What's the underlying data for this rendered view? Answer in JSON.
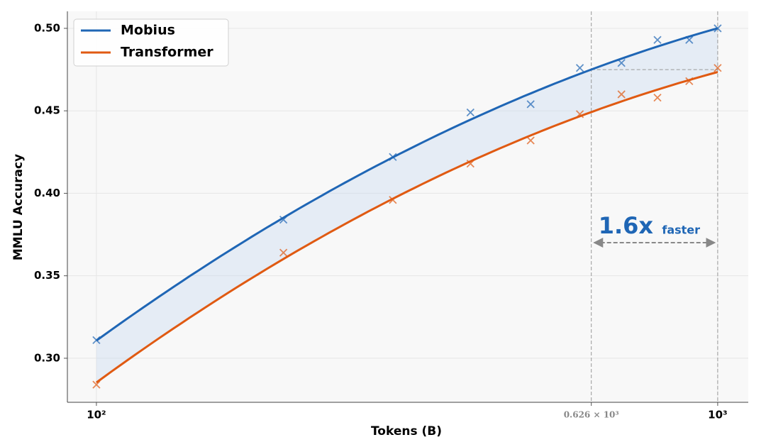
{
  "chart_data": {
    "type": "line",
    "x_label": "Tokens (B)",
    "y_label": "MMLU Accuracy",
    "x": [
      100,
      200,
      300,
      400,
      500,
      600,
      700,
      800,
      900,
      1000
    ],
    "series": [
      {
        "name": "Mobius",
        "color": "#1f66b5",
        "values": [
          0.311,
          0.384,
          0.422,
          0.449,
          0.454,
          0.476,
          0.479,
          0.493,
          0.493,
          0.5
        ]
      },
      {
        "name": "Transformer",
        "color": "#e05a12",
        "values": [
          0.284,
          0.364,
          0.396,
          0.418,
          0.432,
          0.448,
          0.46,
          0.458,
          0.468,
          0.476
        ]
      }
    ],
    "xscale": "log",
    "xlim": [
      89.8,
      1120
    ],
    "ylim": [
      0.2733,
      0.5103
    ],
    "xticks": [
      {
        "value": 100,
        "label": "10²"
      },
      {
        "value": 626,
        "label": "0.626 × 10³"
      },
      {
        "value": 1000,
        "label": "10³"
      }
    ],
    "yticks": [
      {
        "value": 0.3,
        "label": "0.30"
      },
      {
        "value": 0.35,
        "label": "0.35"
      },
      {
        "value": 0.4,
        "label": "0.40"
      },
      {
        "value": 0.45,
        "label": "0.45"
      },
      {
        "value": 0.5,
        "label": "0.50"
      }
    ],
    "grid": true,
    "legend": "upper left",
    "annotation": {
      "text": "1.6x",
      "subtext": "faster",
      "x_start": 626,
      "x_end": 1000,
      "y": 0.475
    }
  }
}
